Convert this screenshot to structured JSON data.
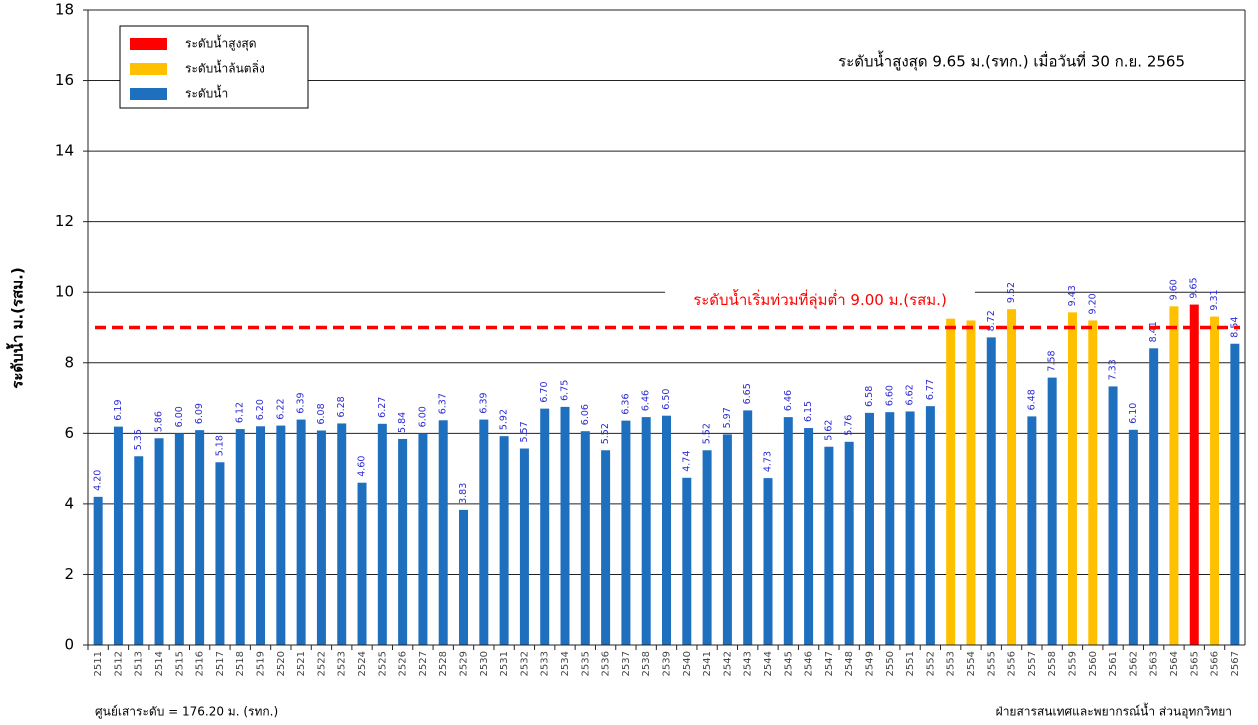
{
  "chart_data": {
    "type": "bar",
    "y_label": "ระดับน้ำ ม.(รสม.)",
    "annotation": "ระดับน้ำสูงสุด 9.65 ม.(รทก.) เมื่อวันที่ 30 ก.ย.  2565",
    "footer_left": "ศูนย์เสาระดับ = 176.20 ม. (รทก.)",
    "footer_right": "ฝ่ายสารสนเทศและพยากรณ์น้ำ ส่วนอุทกวิทยา",
    "legend": [
      {
        "name": "ระดับน้ำสูงสุด",
        "color": "#ff0000"
      },
      {
        "name": "ระดับน้ำล้นตลิ่ง",
        "color": "#ffc000"
      },
      {
        "name": "ระดับน้ำ",
        "color": "#1f6fbf"
      }
    ],
    "reference_line": {
      "value": 9,
      "label": "ระดับน้ำเริ่มท่วมที่ลุ่มต่ำ 9.00 ม.(รสม.)",
      "color": "#ff0000"
    },
    "categories": [
      "2511",
      "2512",
      "2513",
      "2514",
      "2515",
      "2516",
      "2517",
      "2518",
      "2519",
      "2520",
      "2521",
      "2522",
      "2523",
      "2524",
      "2525",
      "2526",
      "2527",
      "2528",
      "2529",
      "2530",
      "2531",
      "2532",
      "2533",
      "2534",
      "2535",
      "2536",
      "2537",
      "2538",
      "2539",
      "2540",
      "2541",
      "2542",
      "2543",
      "2544",
      "2545",
      "2546",
      "2547",
      "2548",
      "2549",
      "2550",
      "2551",
      "2552",
      "2553",
      "2554",
      "2555",
      "2556",
      "2557",
      "2558",
      "2559",
      "2560",
      "2561",
      "2562",
      "2563",
      "2564",
      "2565",
      "2566",
      "2567"
    ],
    "values": [
      4.2,
      6.19,
      5.35,
      5.86,
      6,
      6.09,
      5.18,
      6.12,
      6.2,
      6.22,
      6.39,
      6.08,
      6.28,
      4.6,
      6.27,
      5.84,
      6,
      6.37,
      3.83,
      6.39,
      5.92,
      5.57,
      6.7,
      6.75,
      6.06,
      5.52,
      6.36,
      6.46,
      6.5,
      4.74,
      5.52,
      5.97,
      6.65,
      4.73,
      6.46,
      6.15,
      5.62,
      5.76,
      6.58,
      6.6,
      6.62,
      6.77,
      9.25,
      9.2,
      8.72,
      9.52,
      6.48,
      7.58,
      9.43,
      9.2,
      7.33,
      6.1,
      8.41,
      9.6,
      9.65,
      9.31,
      8.54
    ],
    "value_labels": [
      "4.20",
      "6.19",
      "5.35",
      "5.86",
      "6.00",
      "6.09",
      "5.18",
      "6.12",
      "6.20",
      "6.22",
      "6.39",
      "6.08",
      "6.28",
      "4.60",
      "6.27",
      "5.84",
      "6.00",
      "6.37",
      "3.83",
      "6.39",
      "5.92",
      "5.57",
      "6.70",
      "6.75",
      "6.06",
      "5.52",
      "6.36",
      "6.46",
      "6.50",
      "4.74",
      "5.52",
      "5.97",
      "6.65",
      "4.73",
      "6.46",
      "6.15",
      "5.62",
      "5.76",
      "6.58",
      "6.60",
      "6.62",
      "6.77",
      null,
      null,
      "8.72",
      "9.52",
      "6.48",
      "7.58",
      "9.43",
      "9.20",
      "7.33",
      "6.10",
      "8.41",
      "9.60",
      "9.65",
      "9.31",
      "8.54"
    ],
    "colors": [
      "#1f6fbf",
      "#1f6fbf",
      "#1f6fbf",
      "#1f6fbf",
      "#1f6fbf",
      "#1f6fbf",
      "#1f6fbf",
      "#1f6fbf",
      "#1f6fbf",
      "#1f6fbf",
      "#1f6fbf",
      "#1f6fbf",
      "#1f6fbf",
      "#1f6fbf",
      "#1f6fbf",
      "#1f6fbf",
      "#1f6fbf",
      "#1f6fbf",
      "#1f6fbf",
      "#1f6fbf",
      "#1f6fbf",
      "#1f6fbf",
      "#1f6fbf",
      "#1f6fbf",
      "#1f6fbf",
      "#1f6fbf",
      "#1f6fbf",
      "#1f6fbf",
      "#1f6fbf",
      "#1f6fbf",
      "#1f6fbf",
      "#1f6fbf",
      "#1f6fbf",
      "#1f6fbf",
      "#1f6fbf",
      "#1f6fbf",
      "#1f6fbf",
      "#1f6fbf",
      "#1f6fbf",
      "#1f6fbf",
      "#1f6fbf",
      "#1f6fbf",
      "#ffc000",
      "#ffc000",
      "#1f6fbf",
      "#ffc000",
      "#1f6fbf",
      "#1f6fbf",
      "#ffc000",
      "#ffc000",
      "#1f6fbf",
      "#1f6fbf",
      "#1f6fbf",
      "#ffc000",
      "#ff0000",
      "#ffc000",
      "#1f6fbf"
    ],
    "ylim": [
      0,
      18
    ],
    "yticks": [
      0,
      2,
      4,
      6,
      8,
      10,
      12,
      14,
      16,
      18
    ],
    "grid": true
  }
}
